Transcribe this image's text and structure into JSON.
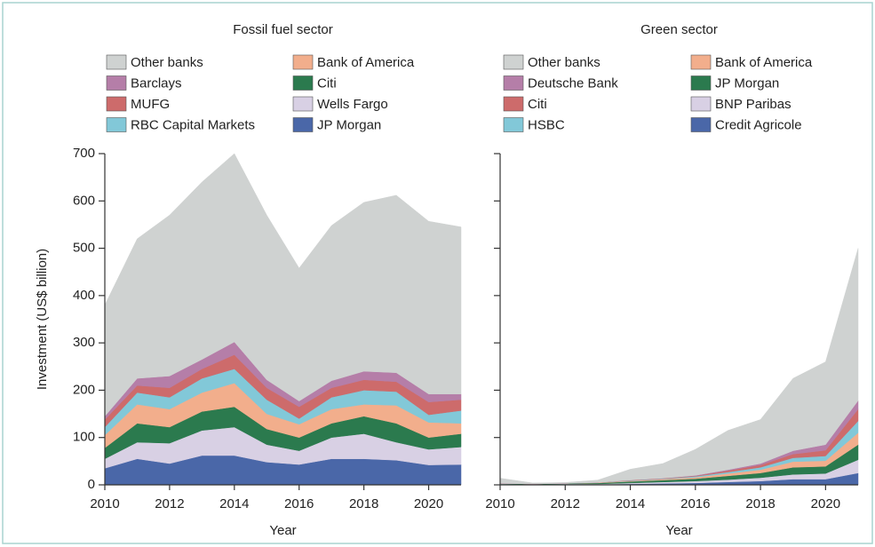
{
  "chart_data": [
    {
      "type": "area",
      "title": "Fossil fuel sector",
      "xlabel": "Year",
      "ylabel": "Investment (US$ billion)",
      "x": [
        2010,
        2011,
        2012,
        2013,
        2014,
        2015,
        2016,
        2017,
        2018,
        2019,
        2020,
        2021
      ],
      "xlim": [
        2010,
        2021
      ],
      "xticks": [
        2010,
        2012,
        2014,
        2016,
        2018,
        2020
      ],
      "ylim": [
        0,
        700
      ],
      "yticks": [
        0,
        100,
        200,
        300,
        400,
        500,
        600,
        700
      ],
      "series": [
        {
          "name": "Other banks",
          "color": "#cfd2d1",
          "values": [
            235,
            295,
            340,
            375,
            398,
            348,
            281,
            328,
            357,
            375,
            365,
            353
          ]
        },
        {
          "name": "Barclays",
          "color": "#b57ea8",
          "values": [
            7,
            15,
            25,
            20,
            27,
            17,
            12,
            15,
            18,
            19,
            17,
            12
          ]
        },
        {
          "name": "MUFG",
          "color": "#cd6b6b",
          "values": [
            16,
            15,
            20,
            20,
            30,
            25,
            25,
            20,
            22,
            21,
            27,
            23
          ]
        },
        {
          "name": "RBC Capital Markets",
          "color": "#82c8d8",
          "values": [
            17,
            25,
            25,
            30,
            30,
            30,
            12,
            25,
            30,
            29,
            16,
            27
          ]
        },
        {
          "name": "Bank of America",
          "color": "#f2ae8c",
          "values": [
            27,
            40,
            38,
            40,
            50,
            32,
            28,
            30,
            25,
            38,
            32,
            22
          ]
        },
        {
          "name": "Citi",
          "color": "#2b7a4e",
          "values": [
            23,
            40,
            34,
            40,
            43,
            33,
            28,
            30,
            37,
            40,
            25,
            28
          ]
        },
        {
          "name": "Wells Fargo",
          "color": "#d8d0e4",
          "values": [
            20,
            35,
            43,
            53,
            60,
            37,
            29,
            45,
            53,
            38,
            33,
            37
          ]
        },
        {
          "name": "JP Morgan",
          "color": "#4a67a8",
          "values": [
            35,
            55,
            45,
            62,
            62,
            48,
            43,
            55,
            55,
            52,
            42,
            43
          ]
        }
      ]
    },
    {
      "type": "area",
      "title": "Green sector",
      "xlabel": "Year",
      "x": [
        2010,
        2011,
        2012,
        2013,
        2014,
        2015,
        2016,
        2017,
        2018,
        2019,
        2020,
        2021
      ],
      "xlim": [
        2010,
        2021
      ],
      "xticks": [
        2010,
        2012,
        2014,
        2016,
        2018,
        2020
      ],
      "ylim": [
        0,
        700
      ],
      "series": [
        {
          "name": "Other banks",
          "color": "#cfd2d1",
          "values": [
            11,
            2,
            2,
            5,
            23,
            31,
            55,
            83,
            93,
            153,
            175,
            322
          ]
        },
        {
          "name": "Deutsche Bank",
          "color": "#b57ea8",
          "values": [
            0,
            0,
            0,
            0,
            0,
            0,
            1,
            2,
            3,
            7,
            12,
            18
          ]
        },
        {
          "name": "Citi",
          "color": "#cd6b6b",
          "values": [
            0,
            0,
            0,
            0,
            1,
            1,
            1,
            3,
            5,
            8,
            12,
            25
          ]
        },
        {
          "name": "HSBC",
          "color": "#82c8d8",
          "values": [
            0,
            0,
            0,
            0,
            1,
            1,
            2,
            3,
            5,
            8,
            10,
            25
          ]
        },
        {
          "name": "Bank of America",
          "color": "#f2ae8c",
          "values": [
            0,
            0,
            0,
            1,
            1,
            2,
            3,
            5,
            7,
            12,
            12,
            25
          ]
        },
        {
          "name": "JP Morgan",
          "color": "#2b7a4e",
          "values": [
            1,
            1,
            1,
            2,
            3,
            4,
            5,
            8,
            10,
            15,
            15,
            32
          ]
        },
        {
          "name": "BNP Paribas",
          "color": "#d8d0e4",
          "values": [
            1,
            0,
            1,
            1,
            2,
            3,
            4,
            5,
            7,
            10,
            12,
            28
          ]
        },
        {
          "name": "Credit Agricole",
          "color": "#4a67a8",
          "values": [
            1,
            1,
            1,
            1,
            2,
            3,
            4,
            6,
            8,
            12,
            12,
            25
          ]
        }
      ]
    }
  ]
}
